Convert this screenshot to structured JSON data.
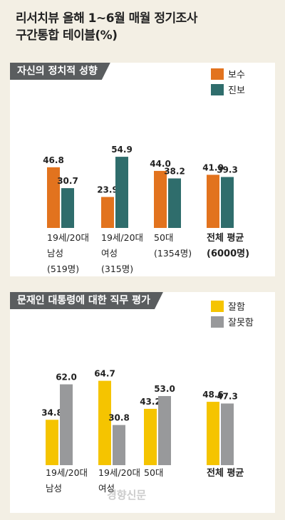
{
  "header": {
    "line1": "리서치뷰 올해 1~6월 매월 정기조사",
    "line2": "구간통합 테이블(%)"
  },
  "watermark": "경향신문",
  "chart_data": [
    {
      "type": "bar",
      "title": "자신의 정치적 성향",
      "categories": [
        [
          "19세/20대",
          "남성",
          "(519명)"
        ],
        [
          "19세/20대",
          "여성",
          "(315명)"
        ],
        [
          "50대",
          "(1354명)"
        ],
        [
          "전체 평균",
          "(6000명)"
        ]
      ],
      "series": [
        {
          "name": "보수",
          "color": "#e2731e",
          "values": [
            46.8,
            23.9,
            44.0,
            41.0
          ],
          "labels": [
            "46.8",
            "23.9",
            "44.0",
            "41.0"
          ]
        },
        {
          "name": "진보",
          "color": "#2f6d6c",
          "values": [
            30.7,
            54.9,
            38.2,
            39.3
          ],
          "labels": [
            "30.7",
            "54.9",
            "38.2",
            "39.3"
          ]
        }
      ],
      "ylim": [
        0,
        60
      ],
      "legend": "top-right"
    },
    {
      "type": "bar",
      "title": "문재인 대통령에 대한 직무 평가",
      "categories": [
        [
          "19세/20대",
          "남성"
        ],
        [
          "19세/20대",
          "여성"
        ],
        [
          "50대"
        ],
        [
          "전체 평균"
        ]
      ],
      "series": [
        {
          "name": "잘함",
          "color": "#f5c400",
          "values": [
            34.8,
            64.7,
            43.2,
            48.6
          ],
          "labels": [
            "34.8",
            "64.7",
            "43.2",
            "48.6"
          ]
        },
        {
          "name": "잘못함",
          "color": "#98999b",
          "values": [
            62.0,
            30.8,
            53.0,
            47.3
          ],
          "labels": [
            "62.0",
            "30.8",
            "53.0",
            "47.3"
          ]
        }
      ],
      "ylim": [
        0,
        70
      ],
      "legend": "top-right"
    }
  ]
}
